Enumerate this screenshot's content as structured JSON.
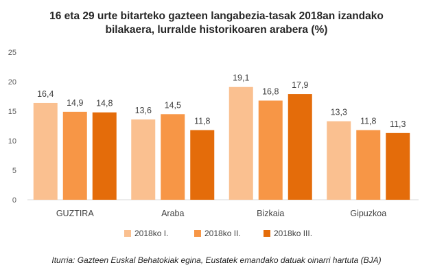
{
  "chart_data": {
    "type": "bar",
    "title": [
      "16 eta 29 urte bitarteko gazteen langabezia-tasak 2018an izandako",
      "bilakaera, lurralde historikoaren arabera (%)"
    ],
    "categories": [
      "GUZTIRA",
      "Araba",
      "Bizkaia",
      "Gipuzkoa"
    ],
    "series": [
      {
        "name": "2018ko I.",
        "color": "#FAC090",
        "values": [
          16.4,
          13.6,
          19.1,
          13.3
        ],
        "labels": [
          "16,4",
          "13,6",
          "19,1",
          "13,3"
        ]
      },
      {
        "name": "2018ko II.",
        "color": "#F79646",
        "values": [
          14.9,
          14.5,
          16.8,
          11.8
        ],
        "labels": [
          "14,9",
          "14,5",
          "16,8",
          "11,8"
        ]
      },
      {
        "name": "2018ko III.",
        "color": "#E46C0A",
        "values": [
          14.8,
          11.8,
          17.9,
          11.3
        ],
        "labels": [
          "14,8",
          "11,8",
          "17,9",
          "11,3"
        ]
      }
    ],
    "ylim": [
      0,
      25
    ],
    "yticks": [
      0,
      5,
      10,
      15,
      20,
      25
    ],
    "ytick_labels": [
      "0",
      "5",
      "10",
      "15",
      "20",
      "25"
    ],
    "grid": false,
    "legend_position": "bottom",
    "source": "Iturria: Gazteen Euskal Behatokiak egina, Eustatek emandako datuak oinarri hartuta (BJA)"
  }
}
